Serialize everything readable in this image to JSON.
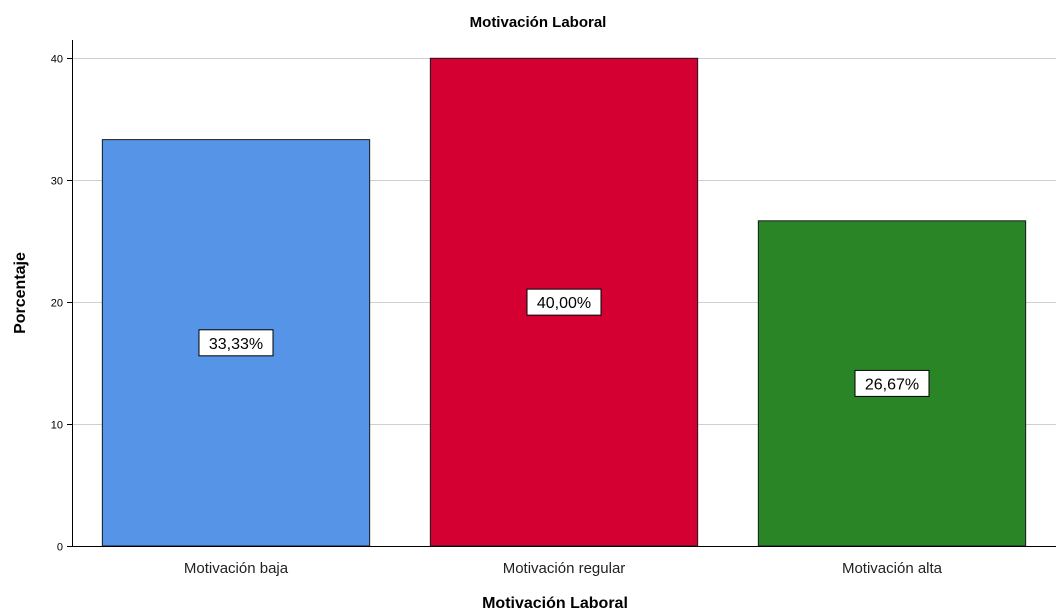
{
  "chart_data": {
    "type": "bar",
    "title": "Motivación Laboral",
    "xlabel": "Motivación Laboral",
    "ylabel": "Porcentaje",
    "categories": [
      "Motivación baja",
      "Motivación regular",
      "Motivación alta"
    ],
    "values": [
      33.33,
      40.0,
      26.67
    ],
    "data_labels": [
      "33,33%",
      "40,00%",
      "26,67%"
    ],
    "colors": [
      "#5594e6",
      "#d50032",
      "#2a8526"
    ],
    "ylim": [
      0,
      41.5
    ],
    "yticks": [
      0,
      10,
      20,
      30,
      40
    ],
    "ytick_labels": [
      "0",
      "10",
      "20",
      "30",
      "40"
    ],
    "grid": true,
    "legend": "none"
  }
}
